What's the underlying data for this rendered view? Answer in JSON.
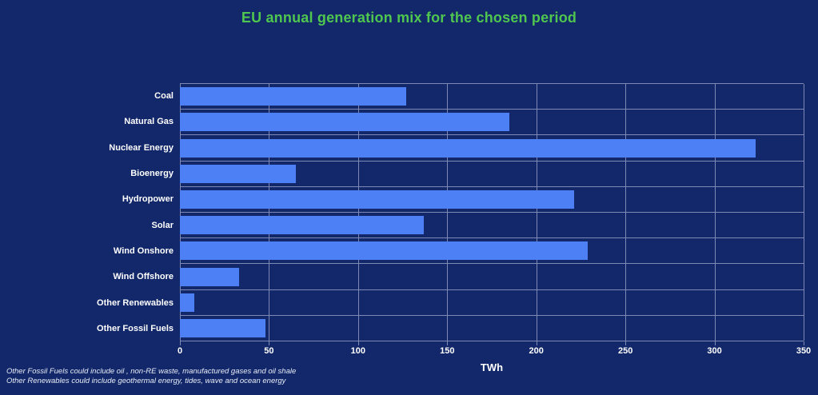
{
  "chart_data": {
    "type": "bar",
    "orientation": "horizontal",
    "title": "EU annual generation mix for the chosen period",
    "xlabel": "TWh",
    "categories": [
      "Coal",
      "Natural Gas",
      "Nuclear Energy",
      "Bioenergy",
      "Hydropower",
      "Solar",
      "Wind Onshore",
      "Wind Offshore",
      "Other Renewables",
      "Other Fossil Fuels"
    ],
    "values": [
      127,
      185,
      323,
      65,
      221,
      137,
      229,
      33,
      8,
      48
    ],
    "xlim": [
      0,
      350
    ],
    "xticks": [
      0,
      50,
      100,
      150,
      200,
      250,
      300,
      350
    ],
    "grid": true,
    "legend": "none",
    "colors": {
      "background": "#12286a",
      "bar": "#4d80f5",
      "title": "#4fc64f",
      "gridline": "#7e89b4",
      "text": "#ffffff"
    }
  },
  "notes": [
    "Other Fossil Fuels could include oil , non-RE waste, manufactured gases and oil shale",
    "Other Renewables could include geothermal energy, tides, wave and ocean energy"
  ]
}
